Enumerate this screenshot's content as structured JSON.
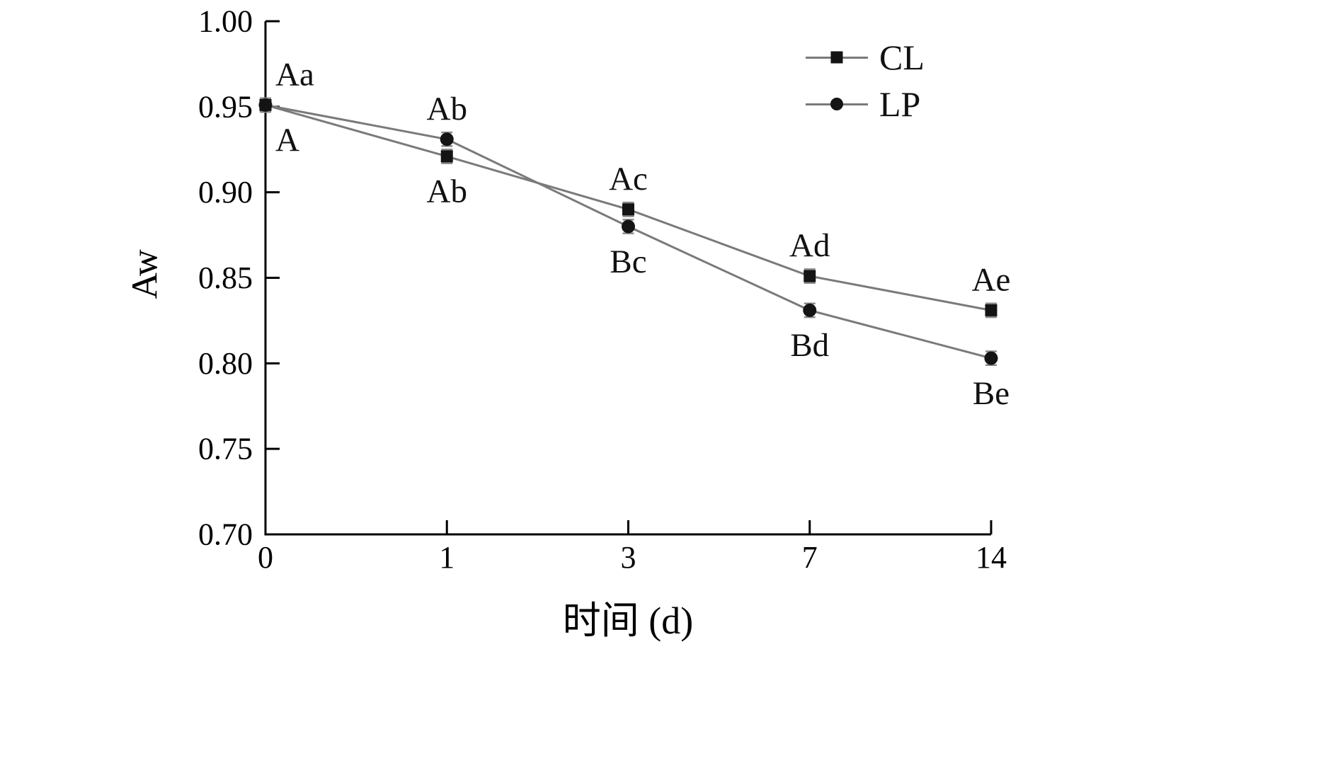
{
  "chart_data": {
    "type": "line",
    "xlabel": "时间 (d)",
    "ylabel": "Aw",
    "x_categories": [
      "0",
      "1",
      "3",
      "7",
      "14"
    ],
    "ylim": [
      0.7,
      1.0
    ],
    "yticks": [
      0.7,
      0.75,
      0.8,
      0.85,
      0.9,
      0.95,
      1.0
    ],
    "grid": false,
    "legend_position": "top-right",
    "error_bar": 0.004,
    "axis_color": "#000000",
    "line_color": "#7a7a7a",
    "marker_color": "#141414",
    "series": [
      {
        "name": "CL",
        "marker": "square",
        "values": [
          0.951,
          0.921,
          0.89,
          0.851,
          0.831
        ],
        "point_labels": [
          {
            "text": "Aa",
            "pos": "above"
          },
          {
            "text": "Ab",
            "pos": "below"
          },
          {
            "text": "Ac",
            "pos": "above"
          },
          {
            "text": "Ad",
            "pos": "above"
          },
          {
            "text": "Ae",
            "pos": "above"
          }
        ]
      },
      {
        "name": "LP",
        "marker": "circle",
        "values": [
          0.951,
          0.931,
          0.88,
          0.831,
          0.803
        ],
        "point_labels": [
          {
            "text": "A",
            "pos": "below"
          },
          {
            "text": "Ab",
            "pos": "above"
          },
          {
            "text": "Bc",
            "pos": "below"
          },
          {
            "text": "Bd",
            "pos": "below"
          },
          {
            "text": "Be",
            "pos": "below"
          }
        ]
      }
    ]
  }
}
